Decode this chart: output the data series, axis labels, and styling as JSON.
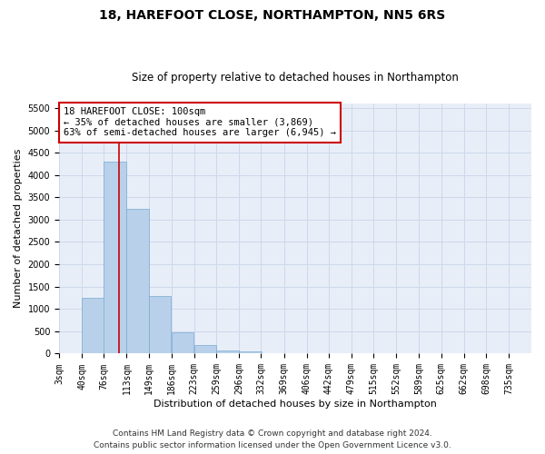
{
  "title": "18, HAREFOOT CLOSE, NORTHAMPTON, NN5 6RS",
  "subtitle": "Size of property relative to detached houses in Northampton",
  "xlabel": "Distribution of detached houses by size in Northampton",
  "ylabel": "Number of detached properties",
  "footer_line1": "Contains HM Land Registry data © Crown copyright and database right 2024.",
  "footer_line2": "Contains public sector information licensed under the Open Government Licence v3.0.",
  "bar_color": "#b8d0ea",
  "bar_edge_color": "#7aaacf",
  "grid_color": "#cdd8ec",
  "background_color": "#e8eef8",
  "annotation_box_color": "#cc0000",
  "annotation_text_line1": "18 HAREFOOT CLOSE: 100sqm",
  "annotation_text_line2": "← 35% of detached houses are smaller (3,869)",
  "annotation_text_line3": "63% of semi-detached houses are larger (6,945) →",
  "property_line_color": "#cc0000",
  "property_line_x": 100,
  "categories": [
    "3sqm",
    "40sqm",
    "76sqm",
    "113sqm",
    "149sqm",
    "186sqm",
    "223sqm",
    "259sqm",
    "296sqm",
    "332sqm",
    "369sqm",
    "406sqm",
    "442sqm",
    "479sqm",
    "515sqm",
    "552sqm",
    "589sqm",
    "625sqm",
    "662sqm",
    "698sqm",
    "735sqm"
  ],
  "bin_edges": [
    3,
    40,
    76,
    113,
    149,
    186,
    223,
    259,
    296,
    332,
    369,
    406,
    442,
    479,
    515,
    552,
    589,
    625,
    662,
    698,
    735
  ],
  "values": [
    0,
    1250,
    4300,
    3250,
    1300,
    480,
    200,
    80,
    60,
    0,
    0,
    0,
    0,
    0,
    0,
    0,
    0,
    0,
    0,
    0,
    0
  ],
  "ylim": [
    0,
    5600
  ],
  "yticks": [
    0,
    500,
    1000,
    1500,
    2000,
    2500,
    3000,
    3500,
    4000,
    4500,
    5000,
    5500
  ],
  "title_fontsize": 10,
  "subtitle_fontsize": 8.5,
  "annotation_fontsize": 7.5,
  "axis_label_fontsize": 8,
  "tick_fontsize": 7,
  "footer_fontsize": 6.5
}
